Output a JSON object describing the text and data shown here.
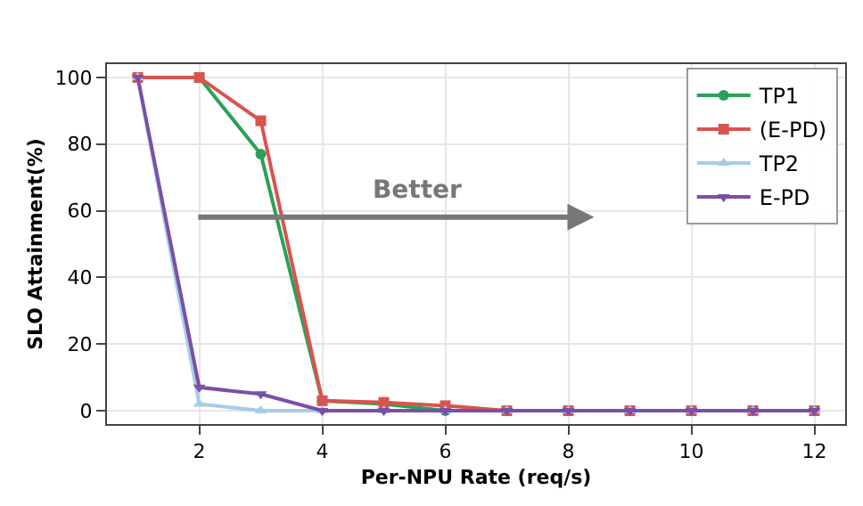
{
  "chart_data": {
    "type": "line",
    "xlabel": "Per-NPU Rate (req/s)",
    "ylabel": "SLO Attainment(%)",
    "x": [
      1,
      2,
      3,
      4,
      5,
      6,
      7,
      8,
      9,
      10,
      11,
      12
    ],
    "series": [
      {
        "name": "TP1",
        "color": "#2ca05a",
        "marker": "circle",
        "values": [
          null,
          100,
          77,
          3,
          2,
          0,
          null,
          null,
          null,
          null,
          null,
          null
        ]
      },
      {
        "name": "(E-PD)",
        "color": "#d9534f",
        "marker": "square",
        "values": [
          100,
          100,
          87,
          3,
          2.5,
          1.5,
          0,
          0,
          0,
          0,
          0,
          0
        ]
      },
      {
        "name": "TP2",
        "color": "#a6cee3",
        "marker": "triangle",
        "values": [
          100,
          2,
          0,
          0,
          0,
          0,
          0,
          0,
          0,
          0,
          0,
          0
        ]
      },
      {
        "name": "E-PD",
        "color": "#7b4fa8",
        "marker": "triangle-down",
        "values": [
          100,
          7,
          5,
          0,
          0,
          0,
          0,
          0,
          0,
          0,
          0,
          0
        ]
      }
    ],
    "xlim": [
      0.5,
      12.5
    ],
    "xticks": [
      2,
      4,
      6,
      8,
      10,
      12
    ],
    "ylim": [
      -4,
      104
    ],
    "yticks": [
      0,
      20,
      40,
      60,
      80,
      100
    ],
    "annotations": [
      "Better"
    ],
    "grid": true,
    "legend": "top right",
    "line_style": "solid"
  }
}
